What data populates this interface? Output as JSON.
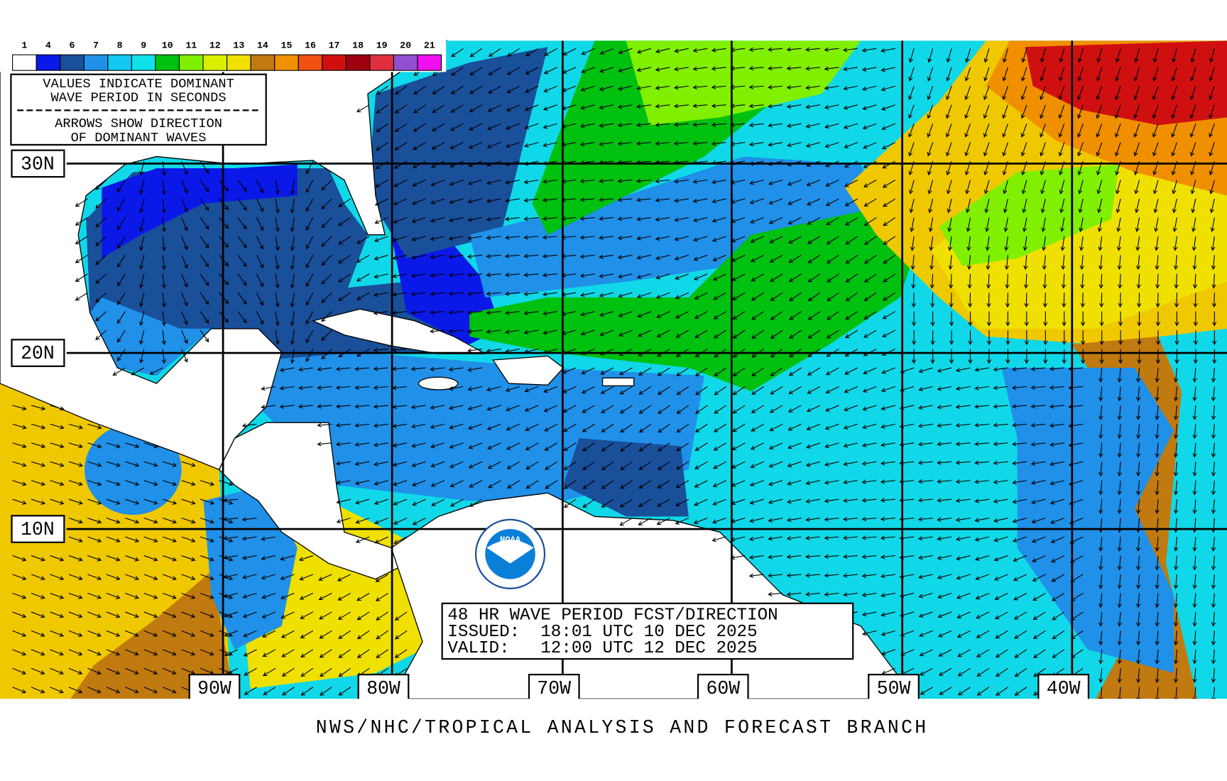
{
  "legend": {
    "items": [
      {
        "label": "1",
        "color": "#ffffff"
      },
      {
        "label": "4",
        "color": "#0a18e8"
      },
      {
        "label": "6",
        "color": "#1a4f9a"
      },
      {
        "label": "7",
        "color": "#2090e8"
      },
      {
        "label": "8",
        "color": "#10c8f0"
      },
      {
        "label": "9",
        "color": "#10e0e8"
      },
      {
        "label": "10",
        "color": "#00c010"
      },
      {
        "label": "11",
        "color": "#80f000"
      },
      {
        "label": "12",
        "color": "#d8f000"
      },
      {
        "label": "13",
        "color": "#f0e000"
      },
      {
        "label": "14",
        "color": "#c07a10"
      },
      {
        "label": "15",
        "color": "#f09000"
      },
      {
        "label": "16",
        "color": "#f05010"
      },
      {
        "label": "17",
        "color": "#d01010"
      },
      {
        "label": "18",
        "color": "#a00010"
      },
      {
        "label": "19",
        "color": "#e03040"
      },
      {
        "label": "20",
        "color": "#9050d0"
      },
      {
        "label": "21",
        "color": "#f010f0"
      }
    ]
  },
  "legend_note": [
    "VALUES INDICATE DOMINANT",
    "WAVE PERIOD IN SECONDS",
    "ARROWS SHOW DIRECTION",
    "OF DOMINANT WAVES"
  ],
  "latitude_labels": [
    "30N",
    "20N",
    "10N"
  ],
  "longitude_labels": [
    "90W",
    "80W",
    "70W",
    "60W",
    "50W",
    "40W"
  ],
  "forecast": [
    "48 HR WAVE PERIOD FCST/DIRECTION",
    "ISSUED:  18:01 UTC 10 DEC 2025",
    "VALID:   12:00 UTC 12 DEC 2025"
  ],
  "logo": "NOAA",
  "footer": "NWS/NHC/TROPICAL ANALYSIS AND FORECAST BRANCH"
}
